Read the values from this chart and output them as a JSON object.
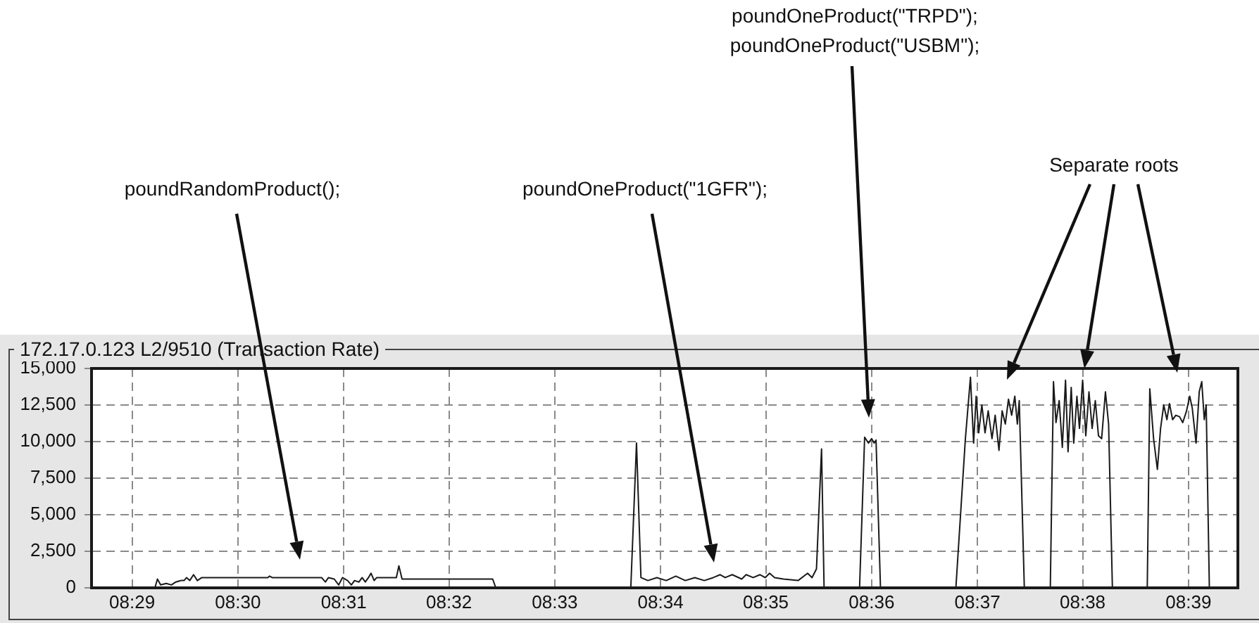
{
  "chart_data": {
    "type": "line",
    "title": "172.17.0.123 L2/9510 (Transaction Rate)",
    "x": [
      8.4769,
      8.4869,
      8.4873,
      8.4878,
      8.4887,
      8.4895,
      8.4902,
      8.491,
      8.4915,
      8.4919,
      8.4924,
      8.493,
      8.4936,
      8.4943,
      8.5047,
      8.505,
      8.5054,
      8.5132,
      8.5138,
      8.5143,
      8.5152,
      8.5159,
      8.5165,
      8.5173,
      8.5179,
      8.5184,
      8.5191,
      8.5196,
      8.5201,
      8.5206,
      8.521,
      8.5215,
      8.5219,
      8.525,
      8.5254,
      8.5259,
      8.5402,
      8.5407,
      8.562,
      8.5629,
      8.5636,
      8.5647,
      8.5661,
      8.5676,
      8.5691,
      8.5706,
      8.5721,
      8.5736,
      8.575,
      8.5761,
      8.5769,
      8.578,
      8.5795,
      8.5802,
      8.5813,
      8.5824,
      8.5832,
      8.5839,
      8.5847,
      8.5861,
      8.5884,
      8.5899,
      8.5906,
      8.5913,
      8.5921,
      8.5925,
      8.5981,
      8.5989,
      8.5995,
      8.6,
      8.6004,
      8.6007,
      8.6014,
      8.6133,
      8.6148,
      8.6156,
      8.6161,
      8.6165,
      8.6169,
      8.6174,
      8.6179,
      8.6184,
      8.619,
      8.6195,
      8.6201,
      8.6206,
      8.6211,
      8.6216,
      8.6221,
      8.6226,
      8.623,
      8.6233,
      8.6241,
      8.6282,
      8.6287,
      8.6291,
      8.6296,
      8.6301,
      8.6306,
      8.631,
      8.6315,
      8.6319,
      8.6324,
      8.6328,
      8.6333,
      8.6338,
      8.6343,
      8.6348,
      8.6353,
      8.6358,
      8.6363,
      8.6369,
      8.6374,
      8.638,
      8.6435,
      8.6439,
      8.6445,
      8.6451,
      8.6456,
      8.6461,
      8.6466,
      8.647,
      8.6475,
      8.648,
      8.6486,
      8.6491,
      8.6497,
      8.6502,
      8.6506,
      8.6512,
      8.6517,
      8.6521,
      8.6525,
      8.6528,
      8.6533,
      8.6544
    ],
    "series": [
      {
        "color": "#1a1a1a",
        "values": [
          0,
          0,
          600,
          200,
          300,
          200,
          400,
          500,
          500,
          700,
          500,
          900,
          500,
          700,
          700,
          800,
          700,
          700,
          400,
          700,
          600,
          200,
          700,
          500,
          200,
          500,
          400,
          700,
          400,
          700,
          1000,
          500,
          700,
          700,
          1500,
          600,
          600,
          0,
          0,
          9900,
          700,
          500,
          700,
          500,
          800,
          500,
          700,
          500,
          700,
          900,
          700,
          900,
          600,
          900,
          700,
          900,
          700,
          1000,
          700,
          600,
          500,
          1000,
          700,
          1300,
          9500,
          0,
          0,
          10300,
          9900,
          10200,
          9900,
          10100,
          0,
          0,
          10200,
          14400,
          9900,
          13100,
          10600,
          12500,
          10600,
          12100,
          10200,
          11800,
          9400,
          12100,
          11200,
          12900,
          11800,
          13100,
          11200,
          12800,
          0,
          0,
          14100,
          11300,
          12800,
          9600,
          14200,
          9300,
          13700,
          9900,
          13100,
          10900,
          14200,
          10400,
          13400,
          10900,
          12800,
          10400,
          10200,
          13400,
          11200,
          0,
          0,
          13600,
          10200,
          8100,
          10900,
          12500,
          11500,
          12600,
          11500,
          11800,
          11700,
          11300,
          12100,
          13100,
          12300,
          9900,
          13400,
          14100,
          11500,
          12500,
          0,
          0
        ]
      }
    ],
    "xlim": [
      8.4769,
      8.6578
    ],
    "xticks": [
      {
        "value": 8.4833,
        "label": "08:29"
      },
      {
        "value": 8.5,
        "label": "08:30"
      },
      {
        "value": 8.5167,
        "label": "08:31"
      },
      {
        "value": 8.5333,
        "label": "08:32"
      },
      {
        "value": 8.55,
        "label": "08:33"
      },
      {
        "value": 8.5667,
        "label": "08:34"
      },
      {
        "value": 8.5833,
        "label": "08:35"
      },
      {
        "value": 8.6,
        "label": "08:36"
      },
      {
        "value": 8.6167,
        "label": "08:37"
      },
      {
        "value": 8.6333,
        "label": "08:38"
      },
      {
        "value": 8.65,
        "label": "08:39"
      }
    ],
    "ylim": [
      0,
      15000
    ],
    "yticks": [
      0,
      {
        "value": 2500,
        "label": "2,500"
      },
      {
        "value": 5000,
        "label": "5,000"
      },
      {
        "value": 7500,
        "label": "7,500"
      },
      {
        "value": 10000,
        "label": "10,000"
      },
      {
        "value": 12500,
        "label": "12,500"
      },
      {
        "value": 15000,
        "label": "15,000"
      }
    ],
    "annotations": [
      "poundRandomProduct();",
      "poundOneProduct(\"1GFR\");",
      "poundOneProduct(\"TRPD\");\npoundOneProduct(\"USBM\");",
      "Separate roots"
    ],
    "grid": true,
    "legend": false,
    "marker": "none",
    "line_style": "solid"
  }
}
